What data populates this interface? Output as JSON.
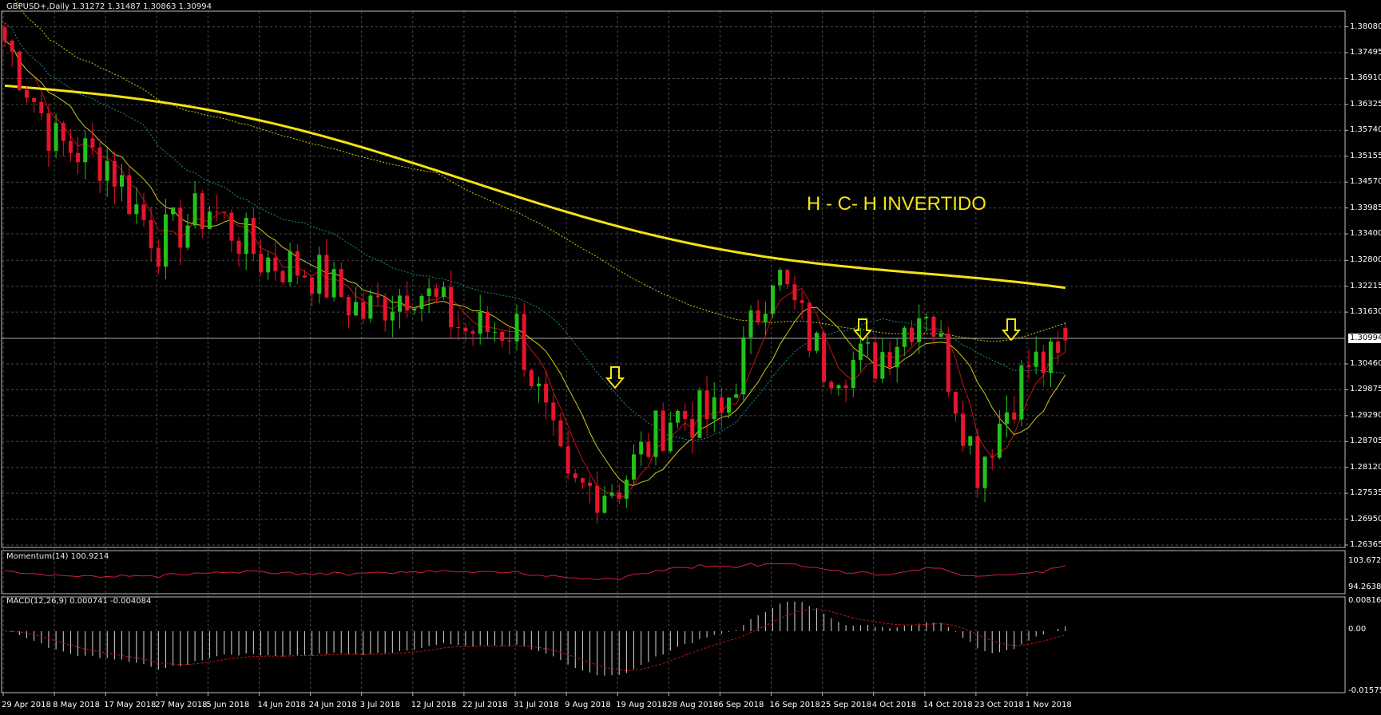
{
  "main_panel": {
    "title": "GBPUSD+,Daily  1.31272 1.31487 1.30863 1.30994",
    "annotation": "H - C- H INVERTIDO",
    "current_price_label": "1.30994",
    "y_ticks": [
      "1.38080",
      "1.37495",
      "1.36910",
      "1.36325",
      "1.35740",
      "1.35155",
      "1.34570",
      "1.33985",
      "1.33400",
      "1.32800",
      "1.32215",
      "1.31630",
      "1.30460",
      "1.29875",
      "1.29290",
      "1.28705",
      "1.28120",
      "1.27535",
      "1.26950",
      "1.26365"
    ]
  },
  "momentum_panel": {
    "title": "Momentum(14) 100.9214",
    "y_ticks": [
      "103.6723",
      "94.2638"
    ]
  },
  "macd_panel": {
    "title": "MACD(12,26,9) 0.000741 -0.004084",
    "y_ticks": [
      "0.008162",
      "0.00",
      "-0.015752"
    ]
  },
  "x_ticks": [
    "29 Apr 2018",
    "8 May 2018",
    "17 May 2018",
    "27 May 2018",
    "5 Jun 2018",
    "14 Jun 2018",
    "24 Jun 2018",
    "3 Jul 2018",
    "12 Jul 2018",
    "22 Jul 2018",
    "31 Jul 2018",
    "9 Aug 2018",
    "19 Aug 2018",
    "28 Aug 2018",
    "6 Sep 2018",
    "16 Sep 2018",
    "25 Sep 2018",
    "4 Oct 2018",
    "14 Oct 2018",
    "23 Oct 2018",
    "1 Nov 2018"
  ],
  "colors": {
    "bull": "#22c11c",
    "bear": "#e8142d",
    "ma200": "#f2e314",
    "grid": "#4a4a4a",
    "signal": "#c21414"
  },
  "chart_data": {
    "type": "candlestick",
    "symbol": "GBPUSD+",
    "timeframe": "Daily",
    "ohlc_last": [
      1.31272,
      1.31487,
      1.30863,
      1.30994
    ],
    "ylim": [
      1.26365,
      1.3838
    ],
    "key_closes": [
      {
        "date": "29 Apr 2018",
        "close": 1.3778
      },
      {
        "date": "8 May 2018",
        "close": 1.3545
      },
      {
        "date": "17 May 2018",
        "close": 1.3505
      },
      {
        "date": "27 May 2018",
        "close": 1.332
      },
      {
        "date": "5 Jun 2018",
        "close": 1.34
      },
      {
        "date": "14 Jun 2018",
        "close": 1.3285
      },
      {
        "date": "24 Jun 2018",
        "close": 1.3255
      },
      {
        "date": "3 Jul 2018",
        "close": 1.316
      },
      {
        "date": "12 Jul 2018",
        "close": 1.3225
      },
      {
        "date": "22 Jul 2018",
        "close": 1.312
      },
      {
        "date": "31 Jul 2018",
        "close": 1.313
      },
      {
        "date": "9 Aug 2018",
        "close": 1.2755
      },
      {
        "date": "19 Aug 2018",
        "close": 1.2775
      },
      {
        "date": "28 Aug 2018",
        "close": 1.293
      },
      {
        "date": "6 Sep 2018",
        "close": 1.2925
      },
      {
        "date": "16 Sep 2018",
        "close": 1.3265
      },
      {
        "date": "25 Sep 2018",
        "close": 1.3045
      },
      {
        "date": "4 Oct 2018",
        "close": 1.3055
      },
      {
        "date": "14 Oct 2018",
        "close": 1.3185
      },
      {
        "date": "23 Oct 2018",
        "close": 1.2815
      },
      {
        "date": "1 Nov 2018",
        "close": 1.3045
      }
    ],
    "low": {
      "date": "15 Aug 2018",
      "price": 1.2665
    },
    "arrows_at": [
      "17 Aug 2018",
      "3 Oct 2018",
      "29 Oct 2018"
    ],
    "momentum_last": 100.9214,
    "momentum_range": [
      94.2638,
      103.6723
    ],
    "macd": {
      "main": 0.000741,
      "signal": -0.004084,
      "range": [
        -0.015752,
        0.008162
      ]
    }
  }
}
